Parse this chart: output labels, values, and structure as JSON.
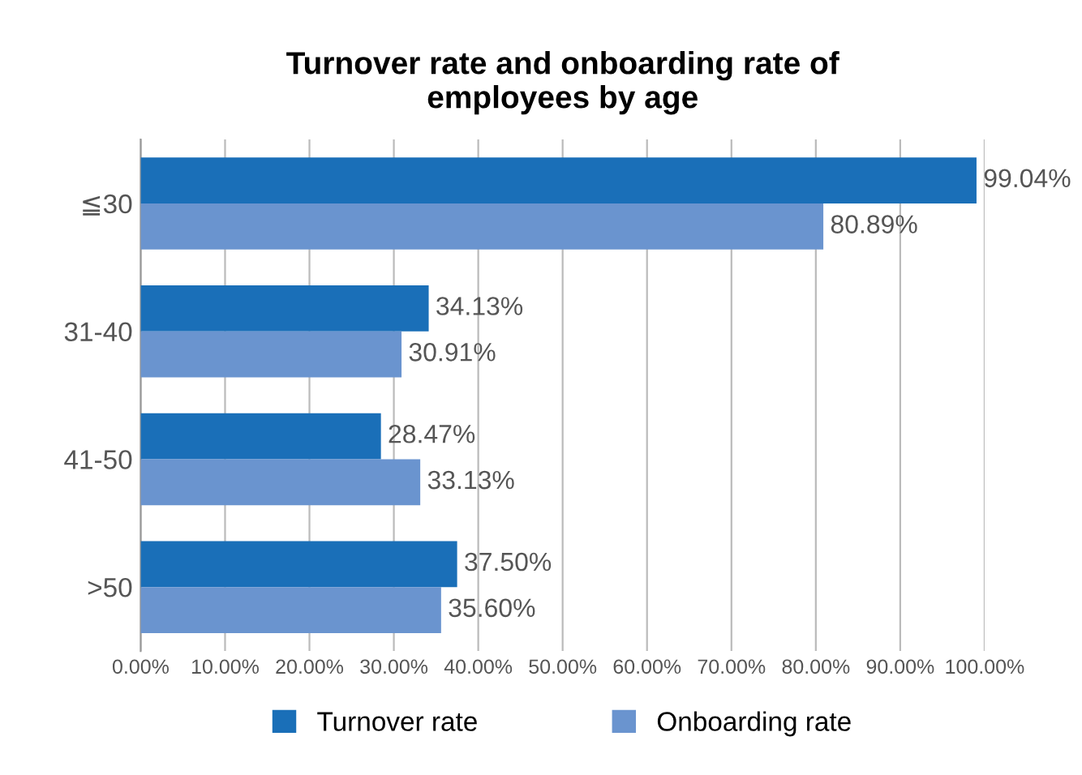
{
  "chart_data": {
    "type": "bar",
    "orientation": "horizontal",
    "title": "Turnover rate and onboarding rate of\nemployees by age",
    "categories": [
      "≦30",
      "31-40",
      "41-50",
      ">50"
    ],
    "series": [
      {
        "name": "Turnover rate",
        "color": "#1a6fb8",
        "values": [
          99.04,
          34.13,
          28.47,
          37.5
        ],
        "value_labels": [
          "99.04%",
          "34.13%",
          "28.47%",
          "37.50%"
        ]
      },
      {
        "name": "Onboarding rate",
        "color": "#6a94cf",
        "values": [
          80.89,
          30.91,
          33.13,
          35.6
        ],
        "value_labels": [
          "80.89%",
          "30.91%",
          "33.13%",
          "35.60%"
        ]
      }
    ],
    "xlim": [
      0,
      100
    ],
    "xticks": [
      {
        "value": 0,
        "label": "0.00%"
      },
      {
        "value": 10,
        "label": "10.00%"
      },
      {
        "value": 20,
        "label": "20.00%"
      },
      {
        "value": 30,
        "label": "30.00%"
      },
      {
        "value": 40,
        "label": "40.00%"
      },
      {
        "value": 50,
        "label": "50.00%"
      },
      {
        "value": 60,
        "label": "60.00%"
      },
      {
        "value": 70,
        "label": "70.00%"
      },
      {
        "value": 80,
        "label": "80.00%"
      },
      {
        "value": 90,
        "label": "90.00%"
      },
      {
        "value": 100,
        "label": "100.00%"
      }
    ],
    "grid": "x",
    "legend": "bottom"
  }
}
